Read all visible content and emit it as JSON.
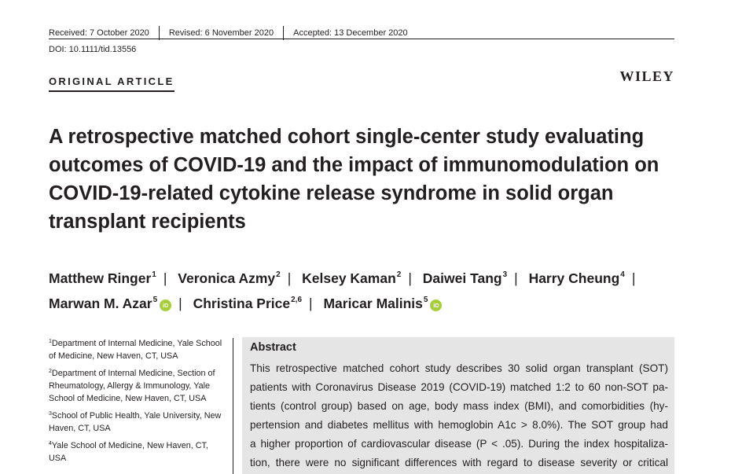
{
  "header": {
    "received": "Received: 7 October 2020",
    "revised": "Revised: 6 November 2020",
    "accepted": "Accepted: 13 December 2020",
    "doi": "DOI: 10.1111/tid.13556",
    "article_type": "ORIGINAL ARTICLE",
    "publisher": "WILEY"
  },
  "title": "A retrospective matched cohort single-center study evaluating outcomes of COVID-19 and the impact of immunomodulation on COVID-19-related cytokine release syndrome in solid organ transplant recipients",
  "authors": [
    {
      "name": "Matthew Ringer",
      "sup": "1"
    },
    {
      "name": "Veronica Azmy",
      "sup": "2"
    },
    {
      "name": "Kelsey Kaman",
      "sup": "2"
    },
    {
      "name": "Daiwei Tang",
      "sup": "3"
    },
    {
      "name": "Harry Cheung",
      "sup": "4"
    },
    {
      "name": "Marwan M. Azar",
      "sup": "5",
      "orcid": "iD"
    },
    {
      "name": "Christina Price",
      "sup": "2,6"
    },
    {
      "name": "Maricar Malinis",
      "sup": "5",
      "orcid": "iD"
    }
  ],
  "affiliations": [
    {
      "sup": "1",
      "text": "Department of Internal Medicine, Yale School of Medicine, New Haven, CT, USA"
    },
    {
      "sup": "2",
      "text": "Department of Internal Medicine, Section of Rheumatology, Allergy & Immunology, Yale School of Medicine, New Haven, CT, USA"
    },
    {
      "sup": "3",
      "text": "School of Public Health, Yale University, New Haven, CT, USA"
    },
    {
      "sup": "4",
      "text": "Yale School of Medicine, New Haven, CT, USA"
    }
  ],
  "abstract": {
    "heading": "Abstract",
    "lines": [
      "This retrospective matched cohort study describes 30 solid organ transplant (SOT)",
      "patients with Coronavirus Disease 2019 (COVID-19) matched 1:2 to 60 non-SOT pa-",
      "tients (control group) based on age, body mass index (BMI), and comorbidities (hy-",
      "pertension and diabetes mellitus with hemoglobin A1c > 8.0%). The SOT group had",
      "a higher proportion of cardiovascular disease (P < .05). During the index hospitaliza-",
      "tion, there were no significant differences with regard to disease severity or critical"
    ]
  }
}
